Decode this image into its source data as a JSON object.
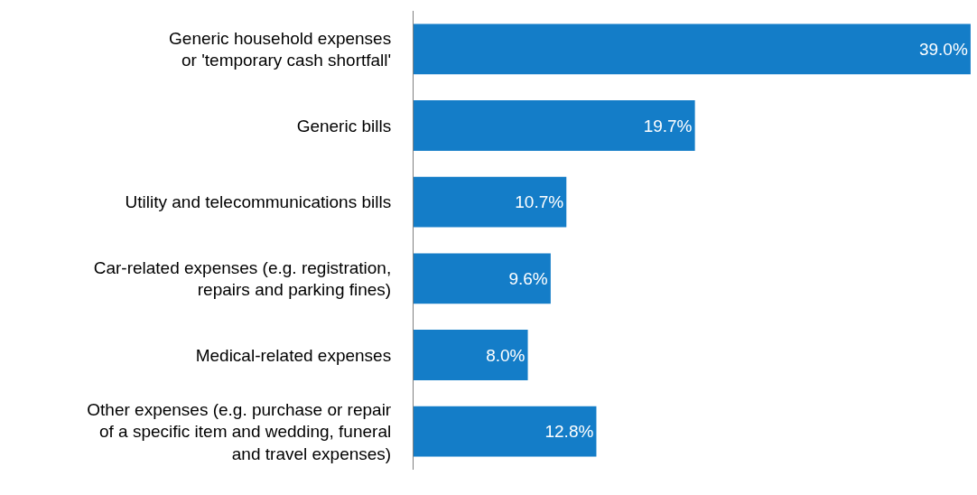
{
  "chart_data": {
    "type": "bar",
    "orientation": "horizontal",
    "categories": [
      "Generic household expenses\nor 'temporary cash shortfall'",
      "Generic bills",
      "Utility and telecommunications bills",
      "Car-related expenses (e.g. registration,\nrepairs and parking fines)",
      "Medical-related expenses",
      "Other expenses (e.g. purchase or repair\nof a specific item and wedding, funeral\nand travel expenses)"
    ],
    "values": [
      39.0,
      19.7,
      10.7,
      9.6,
      8.0,
      12.8
    ],
    "value_labels": [
      "39.0%",
      "19.7%",
      "10.7%",
      "9.6%",
      "8.0%",
      "12.8%"
    ],
    "color": "#147dc8"
  }
}
